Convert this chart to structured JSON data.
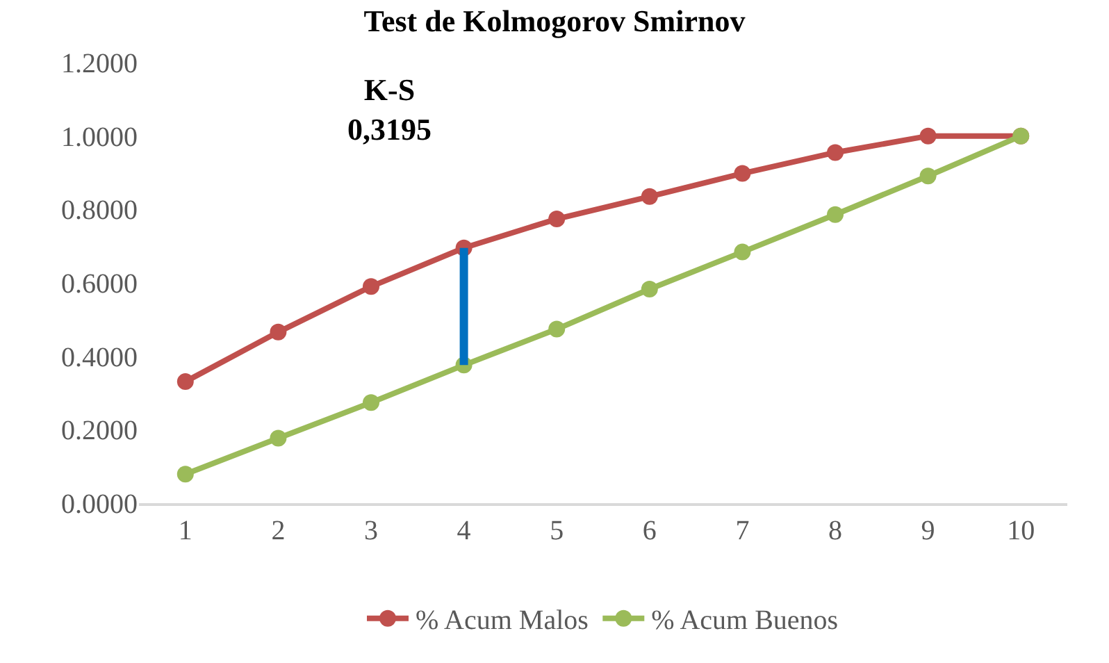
{
  "chart_data": {
    "type": "line",
    "title": "Test de Kolmogorov Smirnov",
    "categories": [
      "1",
      "2",
      "3",
      "4",
      "5",
      "6",
      "7",
      "8",
      "9",
      "10"
    ],
    "series": [
      {
        "name": "% Acum Malos",
        "color": "#c0504d",
        "values": [
          0.331,
          0.466,
          0.59,
          0.695,
          0.774,
          0.835,
          0.898,
          0.955,
          1.0,
          1.0
        ]
      },
      {
        "name": "% Acum Buenos",
        "color": "#9bbb59",
        "values": [
          0.079,
          0.177,
          0.274,
          0.376,
          0.474,
          0.583,
          0.684,
          0.786,
          0.891,
          1.0
        ]
      },
      {
        "type": "line",
        "color": "#0070c0",
        "marker": "none",
        "x": [
          "4",
          "4"
        ],
        "values": [
          0.695,
          0.376
        ]
      }
    ],
    "annotations": [
      "K-S\n0,3195"
    ],
    "ylim": [
      0,
      1.2
    ],
    "yticks": [
      {
        "value": 0,
        "label": "0.0000"
      },
      {
        "value": 0.2,
        "label": "0.2000"
      },
      {
        "value": 0.4,
        "label": "0.4000"
      },
      {
        "value": 0.6,
        "label": "0.6000"
      },
      {
        "value": 0.8,
        "label": "0.8000"
      },
      {
        "value": 1.0,
        "label": "1.0000"
      },
      {
        "value": 1.2,
        "label": "1.2000"
      }
    ],
    "grid": false,
    "legend": "bottom",
    "marker": "circle",
    "line_style": "solid"
  }
}
